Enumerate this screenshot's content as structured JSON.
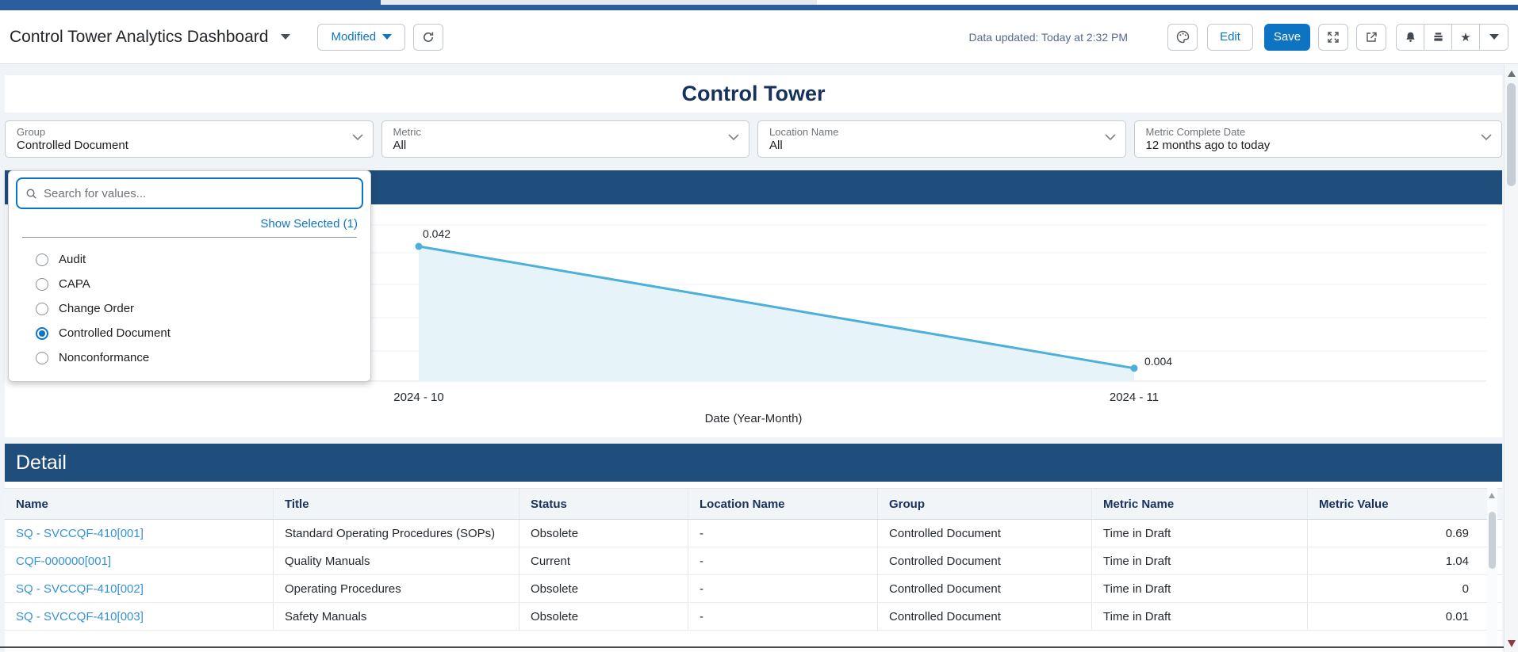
{
  "header": {
    "title": "Control Tower Analytics Dashboard",
    "modified_label": "Modified",
    "data_updated": "Data updated: Today at 2:32 PM",
    "edit_label": "Edit",
    "save_label": "Save"
  },
  "dashboard": {
    "title": "Control Tower",
    "filters": [
      {
        "label": "Group",
        "value": "Controlled Document"
      },
      {
        "label": "Metric",
        "value": "All"
      },
      {
        "label": "Location Name",
        "value": "All"
      },
      {
        "label": "Metric Complete Date",
        "value": "12 months ago to today"
      }
    ]
  },
  "filter_dropdown": {
    "search_placeholder": "Search for values...",
    "show_selected_label": "Show Selected (1)",
    "options": [
      {
        "label": "Audit",
        "selected": false
      },
      {
        "label": "CAPA",
        "selected": false
      },
      {
        "label": "Change Order",
        "selected": false
      },
      {
        "label": "Controlled Document",
        "selected": true
      },
      {
        "label": "Nonconformance",
        "selected": false
      }
    ]
  },
  "chart_data": {
    "type": "line",
    "x": [
      "2024 - 10",
      "2024 - 11"
    ],
    "values": [
      0.042,
      0.004
    ],
    "point_labels": [
      "0.042",
      "0.004"
    ],
    "title": "",
    "xlabel": "Date (Year-Month)",
    "ylabel": "",
    "area_fill": true,
    "grid": "horizontal",
    "legend": "none",
    "line_color": "#4cb0d9",
    "fill_color": "#e6f4fa"
  },
  "detail": {
    "title": "Detail",
    "columns": [
      "Name",
      "Title",
      "Status",
      "Location Name",
      "Group",
      "Metric Name",
      "Metric Value"
    ],
    "rows": [
      {
        "name": "SQ - SVCCQF-410[001]",
        "title": "Standard Operating Procedures (SOPs)",
        "status": "Obsolete",
        "location": "-",
        "group": "Controlled Document",
        "metric_name": "Time in Draft",
        "metric_value": "0.69"
      },
      {
        "name": "CQF-000000[001]",
        "title": "Quality Manuals",
        "status": "Current",
        "location": "-",
        "group": "Controlled Document",
        "metric_name": "Time in Draft",
        "metric_value": "1.04"
      },
      {
        "name": "SQ - SVCCQF-410[002]",
        "title": "Operating Procedures",
        "status": "Obsolete",
        "location": "-",
        "group": "Controlled Document",
        "metric_name": "Time in Draft",
        "metric_value": "0"
      },
      {
        "name": "SQ - SVCCQF-410[003]",
        "title": "Safety Manuals",
        "status": "Obsolete",
        "location": "-",
        "group": "Controlled Document",
        "metric_name": "Time in Draft",
        "metric_value": "0.01"
      }
    ]
  },
  "colors": {
    "panel_header_navy": "#1f4e7c",
    "accent_blue": "#0b76c8",
    "save_button_blue": "#0d74c4",
    "link_blue": "#3492d6",
    "chart_line": "#4cb0d9",
    "chart_fill": "#e6f4fa",
    "top_strip_blue": "#2b5e9f"
  }
}
